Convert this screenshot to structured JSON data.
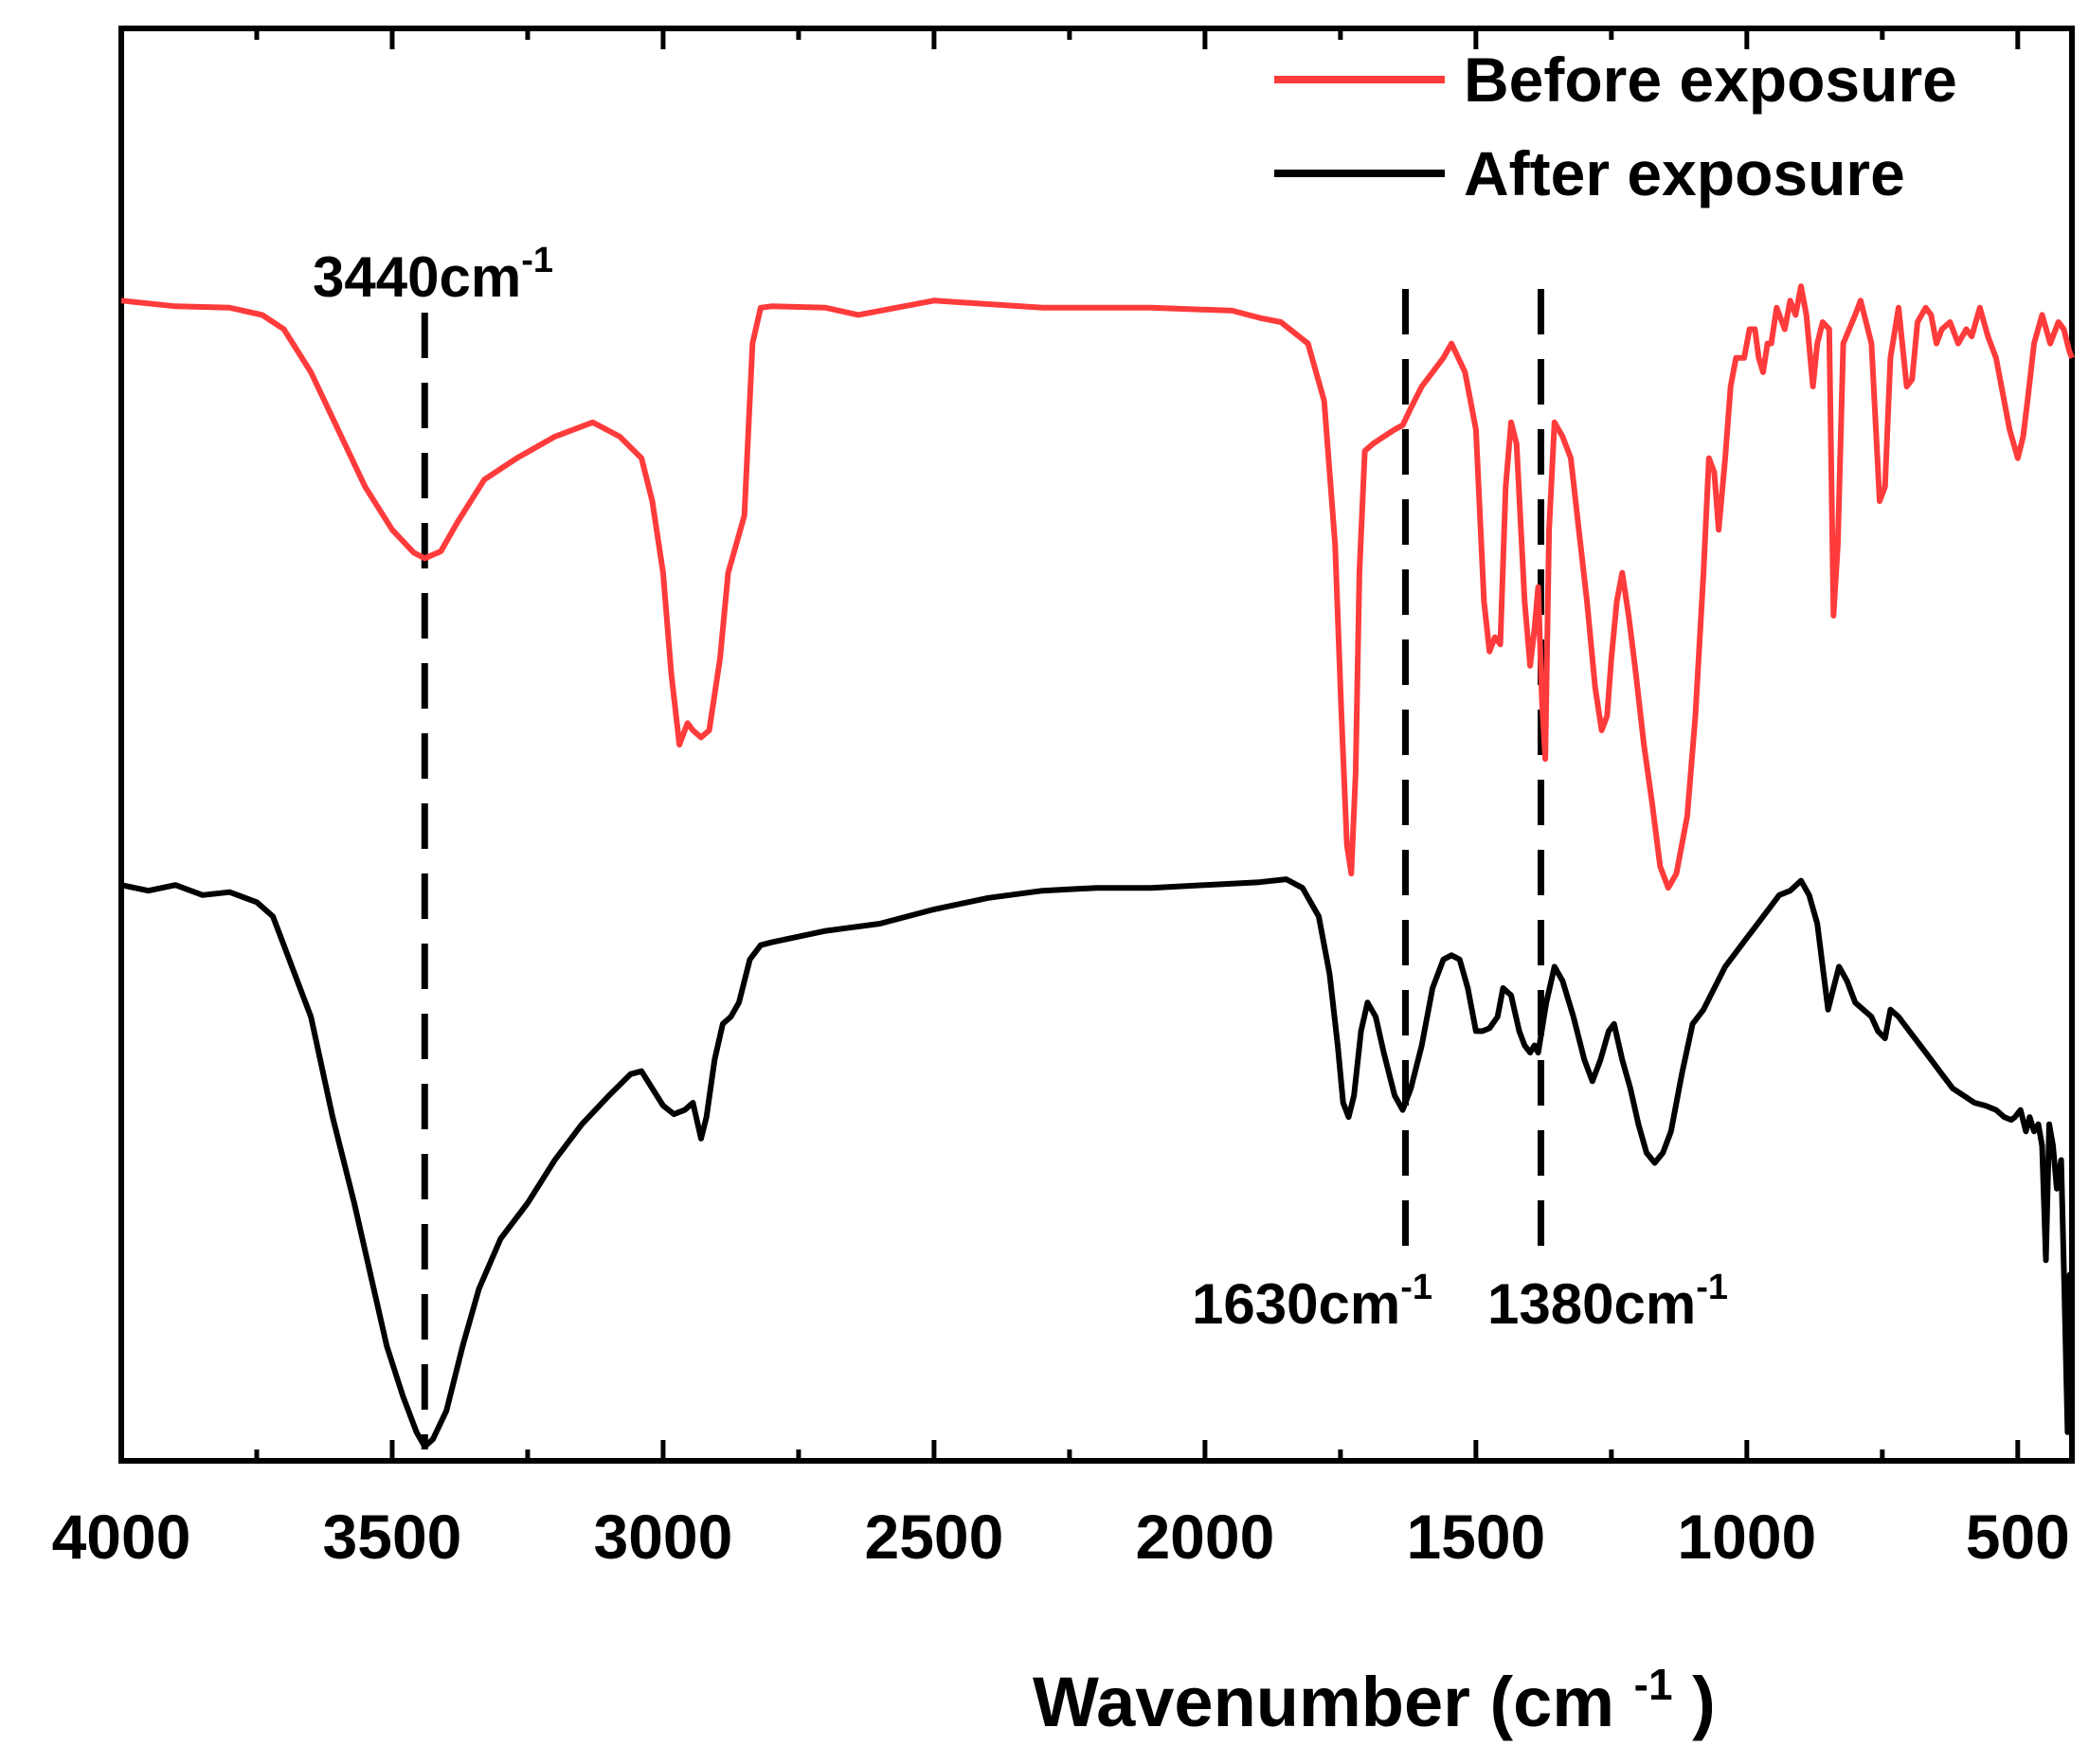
{
  "chart_data": {
    "type": "line",
    "title": "",
    "xlabel": "Wavenumber",
    "xlabel_unit_base": "(cm",
    "xlabel_unit_sup": "-1",
    "xlabel_unit_close": ")",
    "ylabel": "",
    "xlim": [
      4000,
      400
    ],
    "xticks": [
      4000,
      3500,
      3000,
      2500,
      2000,
      1500,
      1000,
      500
    ],
    "xtick_labels": [
      "4000",
      "3500",
      "3000",
      "2500",
      "2000",
      "1500",
      "1000",
      "500"
    ],
    "ylim": [
      0,
      100
    ],
    "legend_position": "top-right",
    "series": [
      {
        "name": "Before exposure",
        "color": "#ff3b3b",
        "points": [
          [
            4000,
            81
          ],
          [
            3900,
            80.6
          ],
          [
            3800,
            80.5
          ],
          [
            3740,
            80
          ],
          [
            3700,
            79
          ],
          [
            3650,
            76
          ],
          [
            3600,
            72
          ],
          [
            3550,
            68
          ],
          [
            3500,
            65
          ],
          [
            3460,
            63.4
          ],
          [
            3440,
            63
          ],
          [
            3410,
            63.5
          ],
          [
            3380,
            65.5
          ],
          [
            3330,
            68.5
          ],
          [
            3270,
            70
          ],
          [
            3200,
            71.5
          ],
          [
            3130,
            72.5
          ],
          [
            3080,
            71.5
          ],
          [
            3040,
            70
          ],
          [
            3020,
            67
          ],
          [
            3000,
            62
          ],
          [
            2985,
            55
          ],
          [
            2970,
            50
          ],
          [
            2955,
            51.5
          ],
          [
            2945,
            51
          ],
          [
            2930,
            50.5
          ],
          [
            2915,
            51
          ],
          [
            2895,
            56
          ],
          [
            2880,
            62
          ],
          [
            2865,
            64
          ],
          [
            2850,
            66
          ],
          [
            2835,
            78
          ],
          [
            2820,
            80.5
          ],
          [
            2800,
            80.6
          ],
          [
            2700,
            80.5
          ],
          [
            2640,
            80
          ],
          [
            2500,
            81
          ],
          [
            2300,
            80.5
          ],
          [
            2100,
            80.5
          ],
          [
            1950,
            80.3
          ],
          [
            1900,
            79.8
          ],
          [
            1860,
            79.5
          ],
          [
            1810,
            78
          ],
          [
            1780,
            74
          ],
          [
            1760,
            64
          ],
          [
            1748,
            52
          ],
          [
            1738,
            43
          ],
          [
            1730,
            41
          ],
          [
            1722,
            48
          ],
          [
            1715,
            62
          ],
          [
            1705,
            70.5
          ],
          [
            1690,
            71
          ],
          [
            1670,
            71.5
          ],
          [
            1650,
            72
          ],
          [
            1635,
            72.3
          ],
          [
            1620,
            73.5
          ],
          [
            1600,
            75
          ],
          [
            1580,
            76
          ],
          [
            1560,
            77
          ],
          [
            1545,
            78
          ],
          [
            1520,
            76
          ],
          [
            1500,
            72
          ],
          [
            1485,
            60
          ],
          [
            1475,
            56.5
          ],
          [
            1465,
            57.5
          ],
          [
            1455,
            57
          ],
          [
            1445,
            68
          ],
          [
            1435,
            72.5
          ],
          [
            1425,
            71
          ],
          [
            1410,
            60
          ],
          [
            1400,
            55.5
          ],
          [
            1392,
            58
          ],
          [
            1385,
            61
          ],
          [
            1378,
            53
          ],
          [
            1372,
            49
          ],
          [
            1365,
            65
          ],
          [
            1355,
            72.5
          ],
          [
            1340,
            71.5
          ],
          [
            1325,
            70
          ],
          [
            1310,
            65
          ],
          [
            1295,
            60
          ],
          [
            1280,
            54
          ],
          [
            1268,
            51
          ],
          [
            1258,
            52
          ],
          [
            1250,
            56
          ],
          [
            1240,
            60
          ],
          [
            1230,
            62
          ],
          [
            1218,
            59
          ],
          [
            1205,
            55
          ],
          [
            1190,
            50
          ],
          [
            1175,
            46
          ],
          [
            1160,
            41.5
          ],
          [
            1145,
            40
          ],
          [
            1130,
            41
          ],
          [
            1110,
            45
          ],
          [
            1095,
            52
          ],
          [
            1080,
            62
          ],
          [
            1070,
            70
          ],
          [
            1060,
            69
          ],
          [
            1052,
            65
          ],
          [
            1040,
            70
          ],
          [
            1030,
            75
          ],
          [
            1020,
            77
          ],
          [
            1005,
            77
          ],
          [
            995,
            79
          ],
          [
            985,
            79
          ],
          [
            978,
            77
          ],
          [
            970,
            76
          ],
          [
            962,
            78
          ],
          [
            955,
            78
          ],
          [
            945,
            80.5
          ],
          [
            930,
            79
          ],
          [
            920,
            81
          ],
          [
            910,
            80
          ],
          [
            900,
            82
          ],
          [
            890,
            80
          ],
          [
            878,
            75
          ],
          [
            870,
            78
          ],
          [
            860,
            79.5
          ],
          [
            848,
            79
          ],
          [
            840,
            59
          ],
          [
            832,
            64
          ],
          [
            822,
            78
          ],
          [
            800,
            80
          ],
          [
            790,
            81
          ],
          [
            780,
            79.5
          ],
          [
            770,
            78
          ],
          [
            755,
            67
          ],
          [
            745,
            68
          ],
          [
            735,
            77
          ],
          [
            720,
            80.5
          ],
          [
            705,
            75
          ],
          [
            695,
            75.5
          ],
          [
            685,
            79.5
          ],
          [
            670,
            80.5
          ],
          [
            660,
            80
          ],
          [
            650,
            78
          ],
          [
            640,
            79
          ],
          [
            625,
            79.5
          ],
          [
            610,
            78
          ],
          [
            595,
            79
          ],
          [
            585,
            78.5
          ],
          [
            570,
            80.5
          ],
          [
            555,
            78.5
          ],
          [
            540,
            77
          ],
          [
            530,
            75
          ],
          [
            515,
            72
          ],
          [
            500,
            70
          ],
          [
            490,
            71.5
          ],
          [
            482,
            74
          ],
          [
            470,
            78
          ],
          [
            455,
            80
          ],
          [
            440,
            78
          ],
          [
            425,
            79.5
          ],
          [
            415,
            79
          ],
          [
            405,
            77.5
          ],
          [
            400,
            77
          ]
        ]
      },
      {
        "name": "After exposure",
        "color": "#000000",
        "points": [
          [
            4000,
            40.2
          ],
          [
            3950,
            39.8
          ],
          [
            3900,
            40.2
          ],
          [
            3850,
            39.5
          ],
          [
            3800,
            39.7
          ],
          [
            3750,
            39
          ],
          [
            3720,
            38
          ],
          [
            3700,
            36
          ],
          [
            3680,
            34
          ],
          [
            3650,
            31
          ],
          [
            3610,
            24
          ],
          [
            3570,
            18
          ],
          [
            3540,
            13
          ],
          [
            3510,
            8
          ],
          [
            3480,
            4.5
          ],
          [
            3455,
            2
          ],
          [
            3440,
            1
          ],
          [
            3425,
            1.5
          ],
          [
            3400,
            3.5
          ],
          [
            3370,
            8
          ],
          [
            3340,
            12
          ],
          [
            3300,
            15.5
          ],
          [
            3250,
            18
          ],
          [
            3200,
            21
          ],
          [
            3150,
            23.5
          ],
          [
            3100,
            25.5
          ],
          [
            3060,
            27
          ],
          [
            3040,
            27.2
          ],
          [
            3020,
            26
          ],
          [
            3000,
            24.8
          ],
          [
            2980,
            24.2
          ],
          [
            2960,
            24.5
          ],
          [
            2945,
            25
          ],
          [
            2930,
            22.5
          ],
          [
            2920,
            24
          ],
          [
            2905,
            28
          ],
          [
            2890,
            30.5
          ],
          [
            2875,
            31
          ],
          [
            2860,
            32
          ],
          [
            2840,
            35
          ],
          [
            2820,
            36
          ],
          [
            2800,
            36.2
          ],
          [
            2700,
            37
          ],
          [
            2600,
            37.5
          ],
          [
            2500,
            38.5
          ],
          [
            2400,
            39.3
          ],
          [
            2300,
            39.8
          ],
          [
            2200,
            40
          ],
          [
            2100,
            40
          ],
          [
            2000,
            40.2
          ],
          [
            1900,
            40.4
          ],
          [
            1850,
            40.6
          ],
          [
            1820,
            40
          ],
          [
            1790,
            38
          ],
          [
            1770,
            34
          ],
          [
            1755,
            29
          ],
          [
            1745,
            25
          ],
          [
            1735,
            24
          ],
          [
            1725,
            25.5
          ],
          [
            1712,
            30
          ],
          [
            1700,
            32
          ],
          [
            1685,
            31
          ],
          [
            1670,
            28.5
          ],
          [
            1650,
            25.5
          ],
          [
            1635,
            24.5
          ],
          [
            1620,
            26
          ],
          [
            1600,
            29
          ],
          [
            1580,
            33
          ],
          [
            1560,
            35
          ],
          [
            1545,
            35.3
          ],
          [
            1530,
            35
          ],
          [
            1515,
            33
          ],
          [
            1500,
            30
          ],
          [
            1488,
            30
          ],
          [
            1475,
            30.2
          ],
          [
            1460,
            31
          ],
          [
            1450,
            33
          ],
          [
            1435,
            32.5
          ],
          [
            1420,
            30
          ],
          [
            1410,
            29
          ],
          [
            1400,
            28.5
          ],
          [
            1392,
            29
          ],
          [
            1385,
            28.5
          ],
          [
            1370,
            32
          ],
          [
            1355,
            34.5
          ],
          [
            1340,
            33.5
          ],
          [
            1320,
            31
          ],
          [
            1300,
            28
          ],
          [
            1285,
            26.5
          ],
          [
            1270,
            28
          ],
          [
            1255,
            30
          ],
          [
            1245,
            30.5
          ],
          [
            1230,
            28
          ],
          [
            1215,
            26
          ],
          [
            1200,
            23.5
          ],
          [
            1185,
            21.5
          ],
          [
            1170,
            20.8
          ],
          [
            1155,
            21.5
          ],
          [
            1140,
            23
          ],
          [
            1120,
            27
          ],
          [
            1100,
            30.5
          ],
          [
            1080,
            31.5
          ],
          [
            1060,
            33
          ],
          [
            1040,
            34.5
          ],
          [
            1020,
            35.5
          ],
          [
            1000,
            36.5
          ],
          [
            980,
            37.5
          ],
          [
            960,
            38.5
          ],
          [
            940,
            39.5
          ],
          [
            920,
            39.8
          ],
          [
            900,
            40.5
          ],
          [
            885,
            39.5
          ],
          [
            870,
            37.5
          ],
          [
            860,
            34.5
          ],
          [
            850,
            31.5
          ],
          [
            840,
            33
          ],
          [
            830,
            34.5
          ],
          [
            815,
            33.5
          ],
          [
            800,
            32
          ],
          [
            785,
            31.5
          ],
          [
            770,
            31
          ],
          [
            758,
            30
          ],
          [
            745,
            29.5
          ],
          [
            735,
            31.5
          ],
          [
            720,
            31
          ],
          [
            700,
            30
          ],
          [
            680,
            29
          ],
          [
            660,
            28
          ],
          [
            640,
            27
          ],
          [
            620,
            26
          ],
          [
            600,
            25.5
          ],
          [
            580,
            25
          ],
          [
            560,
            24.8
          ],
          [
            540,
            24.5
          ],
          [
            525,
            24
          ],
          [
            512,
            23.8
          ],
          [
            505,
            24
          ],
          [
            495,
            24.5
          ],
          [
            485,
            23
          ],
          [
            478,
            24
          ],
          [
            470,
            23
          ],
          [
            462,
            23.5
          ],
          [
            455,
            22
          ],
          [
            448,
            14
          ],
          [
            442,
            23.5
          ],
          [
            435,
            22
          ],
          [
            428,
            19
          ],
          [
            420,
            21
          ],
          [
            414,
            12
          ],
          [
            408,
            2
          ],
          [
            404,
            13
          ],
          [
            400,
            13
          ]
        ]
      }
    ],
    "annotations": [
      {
        "base": "3440cm",
        "sup": "-1",
        "x": 3440
      },
      {
        "base": "1630cm",
        "sup": "-1",
        "x": 1630
      },
      {
        "base": "1380cm",
        "sup": "-1",
        "x": 1380
      }
    ]
  }
}
